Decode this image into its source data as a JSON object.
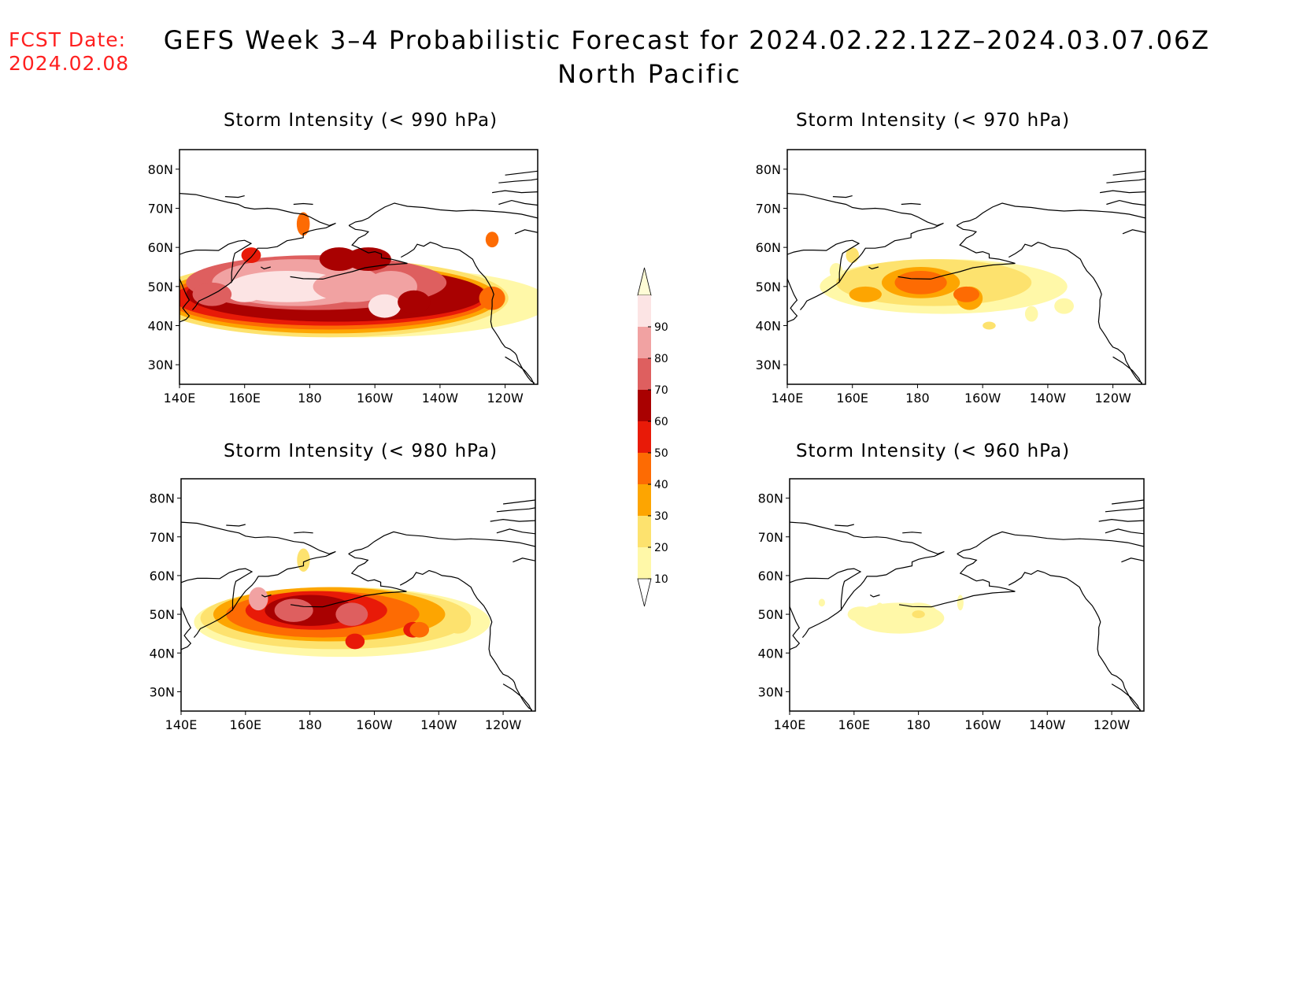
{
  "header": {
    "fcst_label": "FCST Date:",
    "fcst_date": "2024.02.08",
    "title": "GEFS Week 3–4 Probabilistic Forecast for 2024.02.22.12Z–2024.03.07.06Z",
    "region": "North Pacific"
  },
  "axes": {
    "lon_labels": [
      "140E",
      "160E",
      "180",
      "160W",
      "140W",
      "120W"
    ],
    "lat_labels": [
      "80N",
      "70N",
      "60N",
      "50N",
      "40N",
      "30N"
    ]
  },
  "panels": [
    {
      "id": "p990",
      "title": "Storm Intensity (< 990 hPa)",
      "max_level": 90
    },
    {
      "id": "p970",
      "title": "Storm Intensity (< 970 hPa)",
      "max_level": 40
    },
    {
      "id": "p980",
      "title": "Storm Intensity (< 980 hPa)",
      "max_level": 80
    },
    {
      "id": "p960",
      "title": "Storm Intensity (< 960 hPa)",
      "max_level": 20
    }
  ],
  "colorbar": {
    "levels": [
      "10",
      "20",
      "30",
      "40",
      "50",
      "60",
      "70",
      "80",
      "90"
    ],
    "colors": [
      "#fff8a8",
      "#fde26e",
      "#fda501",
      "#fd6b03",
      "#e81a08",
      "#a90101",
      "#de5f5f",
      "#f1a2a2",
      "#fce4e4",
      "#fffcd6"
    ]
  }
}
